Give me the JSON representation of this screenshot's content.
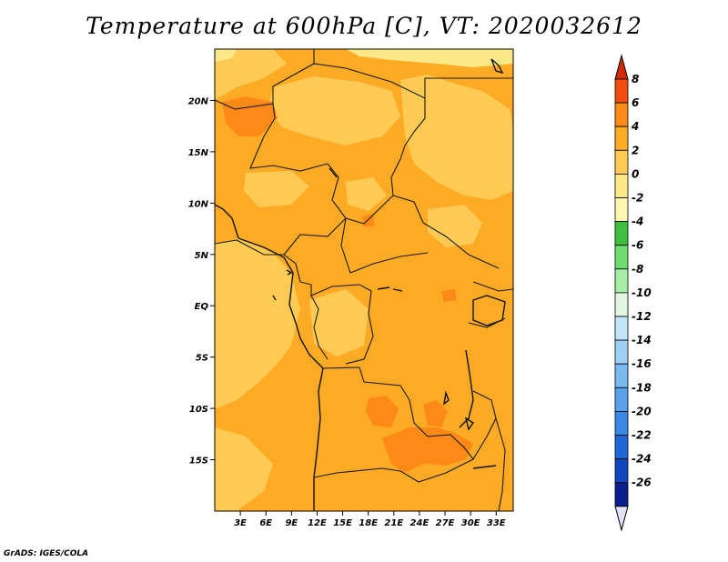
{
  "title": "Temperature at 600hPa [C], VT: 2020032612",
  "footer": "GrADS: IGES/COLA",
  "colors": {
    "band_0_2": "#fdcb54",
    "band_2_4": "#fdaa24",
    "band_4_6": "#fd8a16",
    "band_m2_0": "#fde887",
    "coast": "#111111"
  },
  "map": {
    "lon_range": [
      0,
      35
    ],
    "lat_range": [
      -20,
      25
    ],
    "lon_ticks": [
      {
        "value": 3,
        "label": "3E"
      },
      {
        "value": 6,
        "label": "6E"
      },
      {
        "value": 9,
        "label": "9E"
      },
      {
        "value": 12,
        "label": "12E"
      },
      {
        "value": 15,
        "label": "15E"
      },
      {
        "value": 18,
        "label": "18E"
      },
      {
        "value": 21,
        "label": "21E"
      },
      {
        "value": 24,
        "label": "24E"
      },
      {
        "value": 27,
        "label": "27E"
      },
      {
        "value": 30,
        "label": "30E"
      },
      {
        "value": 33,
        "label": "33E"
      }
    ],
    "lat_ticks": [
      {
        "value": 20,
        "label": "20N"
      },
      {
        "value": 15,
        "label": "15N"
      },
      {
        "value": 10,
        "label": "10N"
      },
      {
        "value": 5,
        "label": "5N"
      },
      {
        "value": 0,
        "label": "EQ"
      },
      {
        "value": -5,
        "label": "5S"
      },
      {
        "value": -10,
        "label": "10S"
      },
      {
        "value": -15,
        "label": "15S"
      }
    ]
  },
  "colorbar": {
    "levels": [
      "8",
      "6",
      "4",
      "2",
      "0",
      "-2",
      "-4",
      "-6",
      "-8",
      "-10",
      "-12",
      "-14",
      "-16",
      "-18",
      "-20",
      "-22",
      "-24",
      "-26"
    ],
    "colors": [
      "#f24d0f",
      "#fd8a16",
      "#fdaa24",
      "#fdcb54",
      "#fde887",
      "#fef6b3",
      "#3fbf3f",
      "#6fdc6f",
      "#a6eea6",
      "#e2f7e2",
      "#c2e4f7",
      "#9ecff4",
      "#7bb8f0",
      "#5aa0eb",
      "#3b87e4",
      "#2067d6",
      "#0f48bd",
      "#0a1f8c"
    ],
    "top_color": "#d42a0c",
    "bottom_color": "#e2e2f6"
  }
}
